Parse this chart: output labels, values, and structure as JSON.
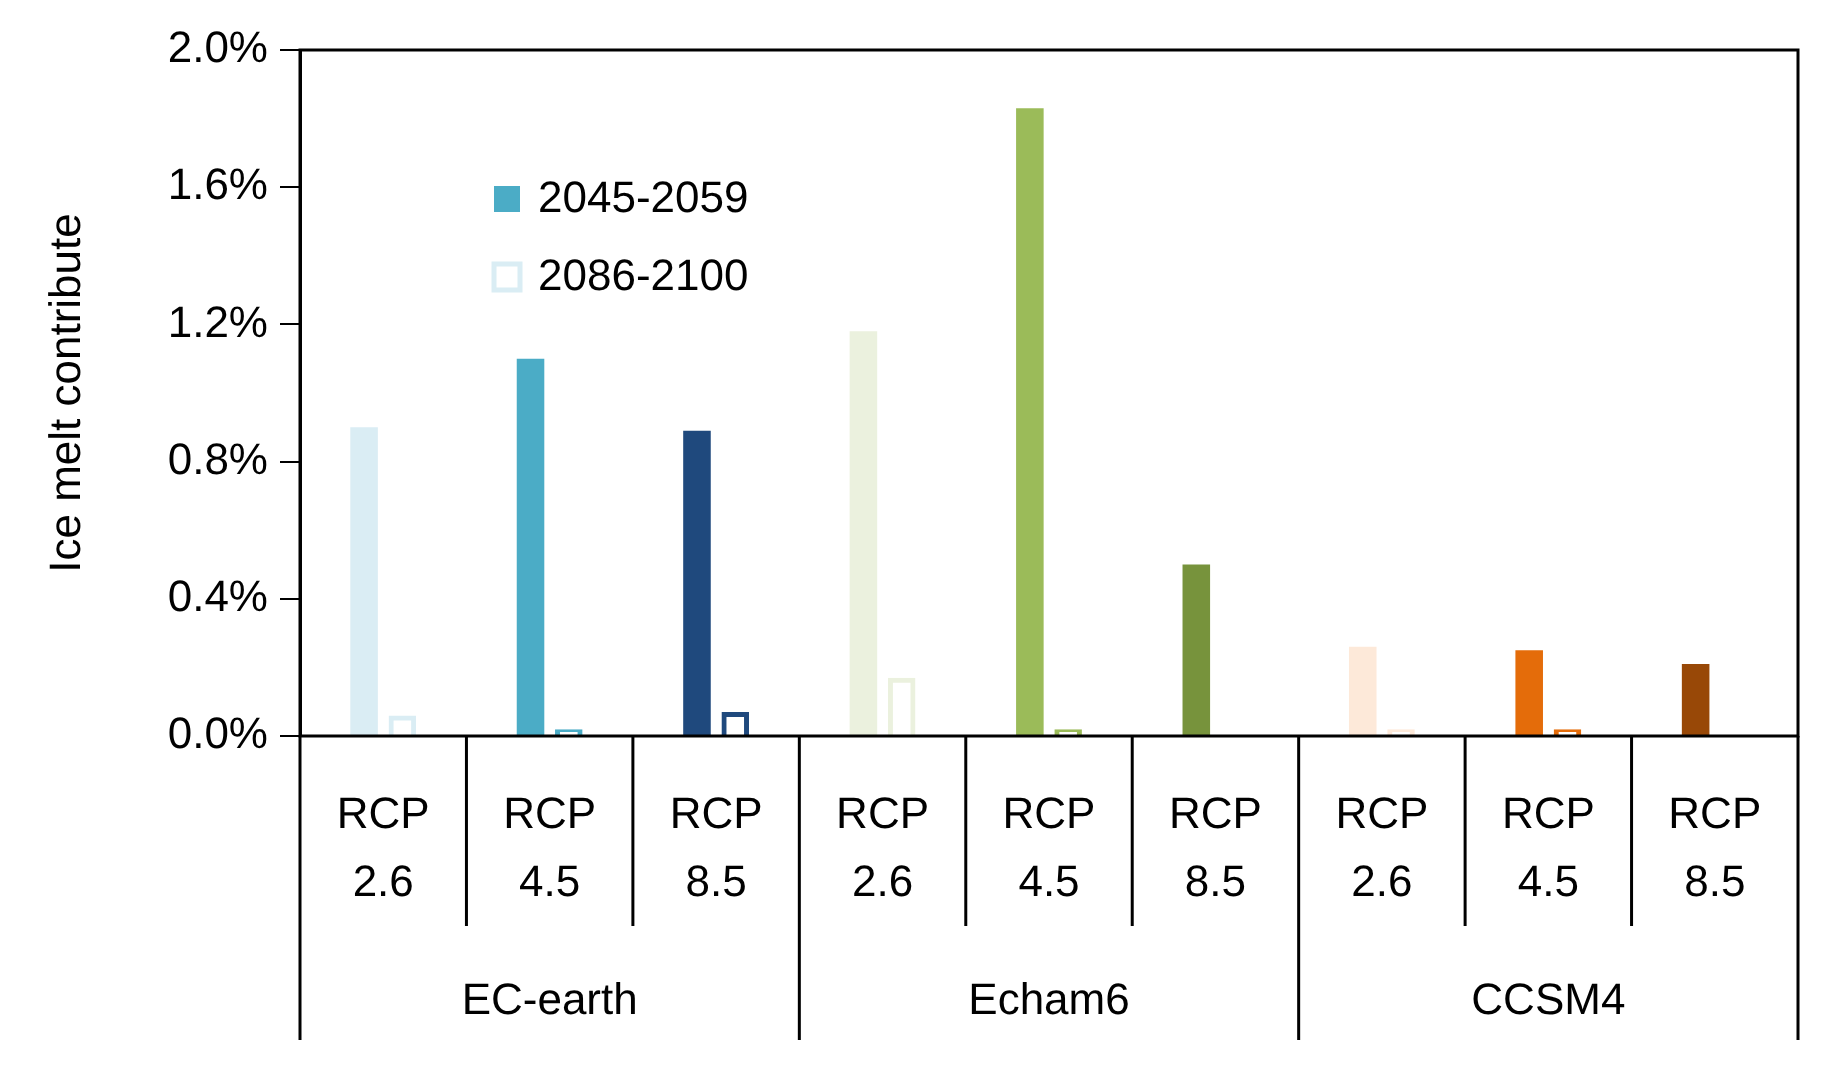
{
  "chart_data": {
    "type": "bar",
    "ylabel": "Ice melt contribute",
    "categories": [
      "RCP 2.6",
      "RCP 4.5",
      "RCP 8.5",
      "RCP 2.6",
      "RCP 4.5",
      "RCP 8.5",
      "RCP 2.6",
      "RCP 4.5",
      "RCP 8.5"
    ],
    "series": [
      {
        "name": "2045-2059",
        "color": "#4bacc6",
        "colors": [
          "#daedf4",
          "#4bacc6",
          "#1f497d",
          "#ebf1de",
          "#9bbb59",
          "#77933c",
          "#fde9d9",
          "#e46c0a",
          "#984807"
        ],
        "values": [
          0.9,
          1.1,
          0.89,
          1.18,
          1.83,
          0.5,
          0.26,
          0.25,
          0.21
        ]
      },
      {
        "name": "2086-2100",
        "color": "#daedf4",
        "colors": [
          "#daedf4",
          "#4bacc6",
          "#1f497d",
          "#ebf1de",
          "#9bbb59",
          "#77933c",
          "#fde9d9",
          "#e46c0a",
          "#984807"
        ],
        "values": [
          0.06,
          0.02,
          0.07,
          0.17,
          0.02,
          0,
          0.02,
          0.02,
          0
        ]
      }
    ],
    "annotations": [
      "EC-earth",
      "Echam6",
      "CCSM4"
    ],
    "ylim": [
      0,
      2
    ],
    "yticks": [
      {
        "value": 0,
        "label": "0.0%"
      },
      {
        "value": 0.4,
        "label": "0.4%"
      },
      {
        "value": 0.8,
        "label": "0.8%"
      },
      {
        "value": 1.2,
        "label": "1.2%"
      },
      {
        "value": 1.6,
        "label": "1.6%"
      },
      {
        "value": 2,
        "label": "2.0%"
      }
    ],
    "grid": false,
    "legend": "top left"
  }
}
